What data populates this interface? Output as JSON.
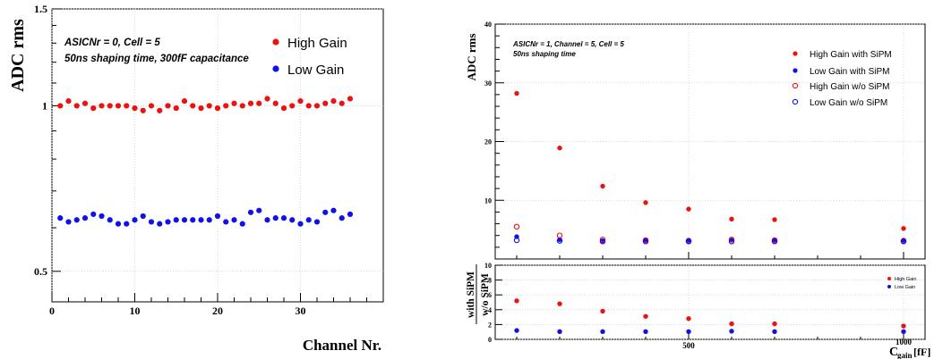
{
  "chart_data": [
    {
      "type": "scatter",
      "xlabel": "Channel Nr.",
      "ylabel": "ADC rms",
      "xlim": [
        0,
        40
      ],
      "ylim": [
        0.44,
        1.5
      ],
      "y_scale": "log",
      "xticks": [
        0,
        10,
        20,
        30
      ],
      "yticks": [
        0.5,
        1,
        1.5
      ],
      "annotation_lines": [
        "ASICNr = 0, Cell = 5",
        "50ns shaping time, 300fF capacitance"
      ],
      "legend_position": "top-right",
      "series": [
        {
          "name": "High Gain",
          "color": "#ee1111",
          "marker": "filled-circle",
          "x": [
            1,
            2,
            3,
            4,
            5,
            6,
            7,
            8,
            9,
            10,
            11,
            12,
            13,
            14,
            15,
            16,
            17,
            18,
            19,
            20,
            21,
            22,
            23,
            24,
            25,
            26,
            27,
            28,
            29,
            30,
            31,
            32,
            33,
            34,
            35,
            36
          ],
          "values": [
            1.0,
            1.02,
            1.0,
            1.01,
            0.99,
            1.0,
            1.0,
            1.0,
            1.0,
            0.99,
            0.98,
            1.0,
            0.98,
            1.0,
            0.99,
            1.02,
            1.0,
            0.99,
            1.0,
            0.99,
            1.0,
            1.01,
            1.0,
            1.01,
            1.01,
            1.03,
            1.01,
            0.99,
            1.0,
            1.02,
            1.0,
            1.0,
            1.01,
            1.02,
            1.01,
            1.03
          ]
        },
        {
          "name": "Low Gain",
          "color": "#1111ee",
          "marker": "filled-circle",
          "x": [
            1,
            2,
            3,
            4,
            5,
            6,
            7,
            8,
            9,
            10,
            11,
            12,
            13,
            14,
            15,
            16,
            17,
            18,
            19,
            20,
            21,
            22,
            23,
            24,
            25,
            26,
            27,
            28,
            29,
            30,
            31,
            32,
            33,
            34,
            35,
            36
          ],
          "values": [
            0.625,
            0.615,
            0.62,
            0.625,
            0.635,
            0.63,
            0.62,
            0.61,
            0.61,
            0.62,
            0.63,
            0.615,
            0.61,
            0.615,
            0.62,
            0.62,
            0.62,
            0.62,
            0.62,
            0.63,
            0.615,
            0.62,
            0.61,
            0.64,
            0.645,
            0.62,
            0.625,
            0.625,
            0.62,
            0.61,
            0.62,
            0.615,
            0.64,
            0.645,
            0.625,
            0.635
          ]
        }
      ]
    },
    {
      "type": "scatter",
      "xlabel_main": "C",
      "xlabel_sub": "gain",
      "xlabel_unit": "[fF]",
      "ylabel": "ADC rms",
      "ratio_ylabel_top": "with SiPM",
      "ratio_ylabel_bottom": "w/o SiPM",
      "xlim": [
        50,
        1050
      ],
      "ylim": [
        0,
        40
      ],
      "ratio_ylim": [
        0,
        10
      ],
      "xticks": [
        500,
        1000
      ],
      "yticks": [
        10,
        20,
        30,
        40
      ],
      "ratio_yticks": [
        0,
        2,
        4,
        6,
        8,
        10
      ],
      "annotation_lines": [
        "ASICNr = 1, Channel = 5, Cell = 5",
        "50ns shaping time"
      ],
      "legend_position": "top-right",
      "series": [
        {
          "name": "High Gain with SiPM",
          "color": "#ee1111",
          "marker": "filled-circle",
          "x": [
            100,
            200,
            300,
            400,
            500,
            600,
            700,
            1000
          ],
          "values": [
            28.2,
            18.9,
            12.4,
            9.6,
            8.5,
            6.8,
            6.7,
            5.2
          ]
        },
        {
          "name": "Low Gain with SiPM",
          "color": "#1111ee",
          "marker": "filled-circle",
          "x": [
            100,
            200,
            300,
            400,
            500,
            600,
            700,
            1000
          ],
          "values": [
            3.8,
            3.3,
            3.1,
            3.2,
            3.2,
            3.2,
            3.2,
            3.2
          ]
        },
        {
          "name": "High Gain w/o SiPM",
          "color": "#ee1111",
          "marker": "open-circle",
          "x": [
            100,
            200,
            300,
            400,
            500,
            600,
            700,
            1000
          ],
          "values": [
            5.5,
            4.0,
            3.3,
            3.2,
            3.1,
            3.3,
            3.2,
            3.1
          ]
        },
        {
          "name": "Low Gain w/o SiPM",
          "color": "#1111ee",
          "marker": "open-circle",
          "x": [
            100,
            200,
            300,
            400,
            500,
            600,
            700,
            1000
          ],
          "values": [
            3.2,
            3.1,
            3.0,
            3.0,
            3.0,
            3.0,
            3.0,
            3.0
          ]
        }
      ],
      "ratio_legend": [
        "High Gain",
        "Low Gain"
      ],
      "ratio_series": [
        {
          "name": "High Gain",
          "color": "#ee1111",
          "x": [
            100,
            200,
            300,
            400,
            500,
            600,
            700,
            1000
          ],
          "values": [
            5.2,
            4.8,
            3.8,
            3.1,
            2.8,
            2.1,
            2.1,
            1.8
          ]
        },
        {
          "name": "Low Gain",
          "color": "#1111ee",
          "x": [
            100,
            200,
            300,
            400,
            500,
            600,
            700,
            1000
          ],
          "values": [
            1.2,
            1.05,
            1.05,
            1.05,
            1.05,
            1.1,
            1.05,
            1.05
          ]
        }
      ]
    }
  ]
}
